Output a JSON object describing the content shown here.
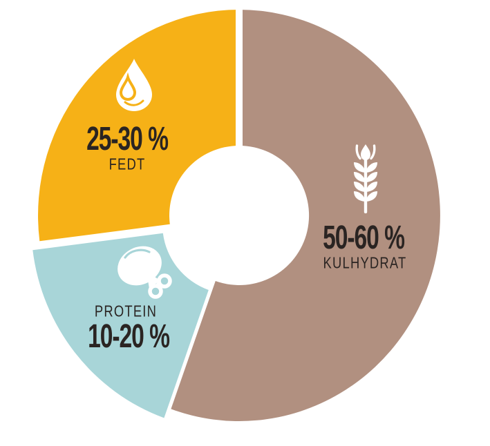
{
  "chart_data": {
    "type": "pie",
    "subtype": "donut",
    "title": "",
    "unit": "%",
    "legend_position": "labels-inside-slices",
    "background_color": "#FFFFFF",
    "text_color": "#2A2422",
    "start_angle_deg_clockwise_from_top": 0,
    "clockwise": true,
    "slices": [
      {
        "label": "KULHYDRAT",
        "value_label": "50-60 %",
        "range_pct": [
          50,
          60
        ],
        "displayed_fraction_pct": 55.5,
        "color": "#B19080",
        "icon": "wheat-icon",
        "icon_color": "#FFFFFF",
        "exploded": false
      },
      {
        "label": "PROTEIN",
        "value_label": "10-20 %",
        "range_pct": [
          10,
          20
        ],
        "displayed_fraction_pct": 17.5,
        "color": "#A8D5D8",
        "icon": "drumstick-icon",
        "icon_color": "#FFFFFF",
        "exploded": true
      },
      {
        "label": "FEDT",
        "value_label": "25-30 %",
        "range_pct": [
          25,
          30
        ],
        "displayed_fraction_pct": 27.0,
        "color": "#F6B117",
        "icon": "drop-icon",
        "icon_color": "#FFFFFF",
        "exploded": false
      }
    ]
  }
}
